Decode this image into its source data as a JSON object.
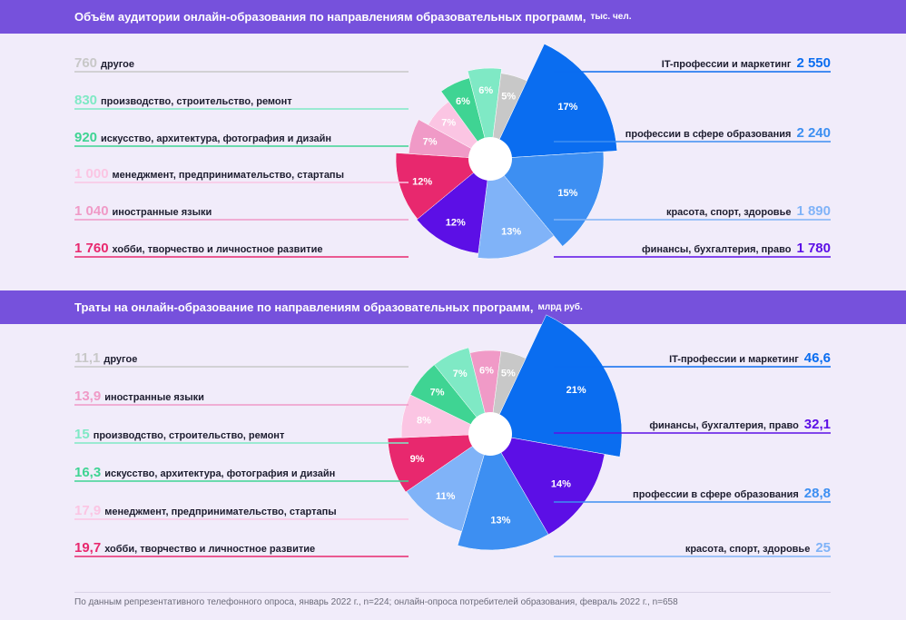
{
  "chart_data": [
    {
      "type": "pie",
      "title": "Объём аудитории онлайн-образования по направлениям образовательных программ",
      "unit": "тыс. чел.",
      "slices": [
        {
          "label": "IT-профессии и маркетинг",
          "value": "2 550",
          "percent": 17,
          "color": "#0a6df0",
          "side": "right"
        },
        {
          "label": "профессии в сфере образования",
          "value": "2 240",
          "percent": 15,
          "color": "#3d8ff2",
          "side": "right"
        },
        {
          "label": "красота, спорт, здоровье",
          "value": "1 890",
          "percent": 13,
          "color": "#80b3f8",
          "side": "right"
        },
        {
          "label": "финансы, бухгалтерия, право",
          "value": "1 780",
          "percent": 12,
          "color": "#5c0fe6",
          "side": "right"
        },
        {
          "label": "хобби, творчество и личностное развитие",
          "value": "1 760",
          "percent": 12,
          "color": "#e8286e",
          "side": "left"
        },
        {
          "label": "иностранные языки",
          "value": "1 040",
          "percent": 7,
          "color": "#f09ac7",
          "side": "left"
        },
        {
          "label": "менеджмент, предпринимательство, стартапы",
          "value": "1 000",
          "percent": 7,
          "color": "#fbc5e3",
          "side": "left"
        },
        {
          "label": "искусство, архитектура, фотография и дизайн",
          "value": "920",
          "percent": 6,
          "color": "#3fd493",
          "side": "left"
        },
        {
          "label": "производство, строительство, ремонт",
          "value": "830",
          "percent": 6,
          "color": "#7fe9c5",
          "side": "left"
        },
        {
          "label": "другое",
          "value": "760",
          "percent": 5,
          "color": "#c8c8c8",
          "side": "left"
        }
      ]
    },
    {
      "type": "pie",
      "title": "Траты на онлайн-образование по направлениям образовательных программ",
      "unit": "млрд руб.",
      "slices": [
        {
          "label": "IT-профессии и маркетинг",
          "value": "46,6",
          "percent": 21,
          "color": "#0a6df0",
          "side": "right"
        },
        {
          "label": "финансы, бухгалтерия, право",
          "value": "32,1",
          "percent": 14,
          "color": "#5c0fe6",
          "side": "right"
        },
        {
          "label": "профессии в сфере образования",
          "value": "28,8",
          "percent": 13,
          "color": "#3d8ff2",
          "side": "right"
        },
        {
          "label": "красота, спорт, здоровье",
          "value": "25",
          "percent": 11,
          "color": "#80b3f8",
          "side": "right"
        },
        {
          "label": "хобби, творчество и личностное развитие",
          "value": "19,7",
          "percent": 9,
          "color": "#e8286e",
          "side": "left"
        },
        {
          "label": "менеджмент, предпринимательство, стартапы",
          "value": "17,9",
          "percent": 8,
          "color": "#fbc5e3",
          "side": "left"
        },
        {
          "label": "искусство, архитектура, фотография и дизайн",
          "value": "16,3",
          "percent": 7,
          "color": "#3fd493",
          "side": "left"
        },
        {
          "label": "производство, строительство, ремонт",
          "value": "15",
          "percent": 7,
          "color": "#7fe9c5",
          "side": "left"
        },
        {
          "label": "иностранные языки",
          "value": "13,9",
          "percent": 6,
          "color": "#f09ac7",
          "side": "left"
        },
        {
          "label": "другое",
          "value": "11,1",
          "percent": 5,
          "color": "#c8c8c8",
          "side": "left"
        }
      ]
    }
  ],
  "footnote": "По данным репрезентативного телефонного опроса, январь 2022 г., n=224; онлайн-опроса потребителей образования, февраль 2022 г., n=658",
  "colors": {
    "band": "#7651dc",
    "background": "#f1ecfa"
  }
}
